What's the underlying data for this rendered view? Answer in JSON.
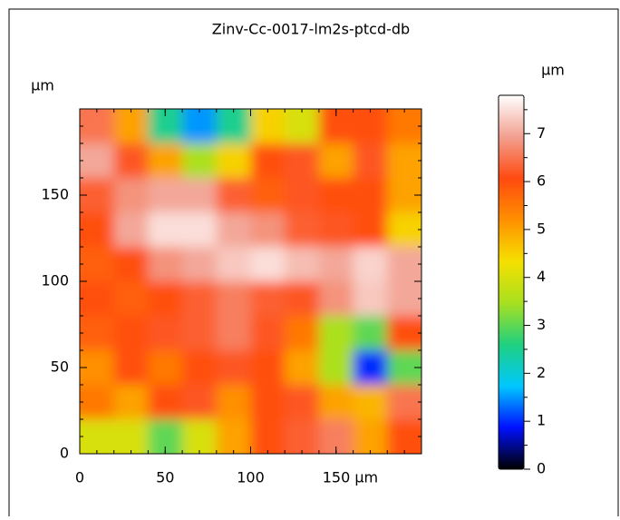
{
  "chart_data": {
    "type": "heatmap",
    "title": "Zinv-Cc-0017-lm2s-ptcd-db",
    "x_unit": "μm",
    "y_unit": "μm",
    "colorbar_unit": "μm",
    "xlim": [
      0,
      200
    ],
    "ylim": [
      0,
      200
    ],
    "xticks": [
      0,
      50,
      100,
      {
        "value": 150,
        "label": "150 μm"
      }
    ],
    "yticks": [
      0,
      50,
      100,
      150
    ],
    "zlim": [
      0,
      7.8
    ],
    "zticks": [
      0,
      1,
      2,
      3,
      4,
      5,
      6,
      7
    ],
    "colormap": [
      "#000000",
      "#0010ff",
      "#00c8ff",
      "#20d080",
      "#a8e020",
      "#f5e000",
      "#ff9000",
      "#ff4a10",
      "#f2a090",
      "#ffffff"
    ],
    "x": [
      10,
      30,
      50,
      70,
      90,
      110,
      130,
      150,
      170,
      190
    ],
    "y": [
      190,
      170,
      150,
      130,
      110,
      90,
      70,
      50,
      30,
      10
    ],
    "z": [
      [
        6.5,
        5,
        2.5,
        1.5,
        2.5,
        4.5,
        4,
        6,
        6,
        5.5
      ],
      [
        7,
        6.2,
        5,
        3.5,
        4.5,
        6,
        6.2,
        5,
        6.2,
        5
      ],
      [
        6.3,
        6.8,
        7,
        7,
        6.3,
        5.8,
        6.2,
        6,
        6,
        5
      ],
      [
        6,
        7,
        7.5,
        7.5,
        7,
        6.8,
        6.3,
        6.2,
        6,
        4.5
      ],
      [
        5.8,
        6,
        6.8,
        7,
        7.3,
        7.5,
        7.2,
        7,
        7.4,
        7
      ],
      [
        6,
        5.8,
        6,
        6.3,
        6.6,
        6.3,
        6.2,
        6.8,
        7.3,
        7
      ],
      [
        5.8,
        6,
        6.2,
        6.3,
        6.6,
        6.2,
        5.5,
        3.5,
        3,
        6
      ],
      [
        5.2,
        6,
        5.5,
        6,
        6.2,
        6,
        5,
        3.5,
        1,
        3
      ],
      [
        5.5,
        5,
        6,
        6.2,
        5.2,
        6,
        6.2,
        5,
        4.8,
        6.5
      ],
      [
        4,
        4,
        3,
        4,
        5,
        6,
        6.3,
        6.6,
        5,
        6
      ]
    ]
  }
}
